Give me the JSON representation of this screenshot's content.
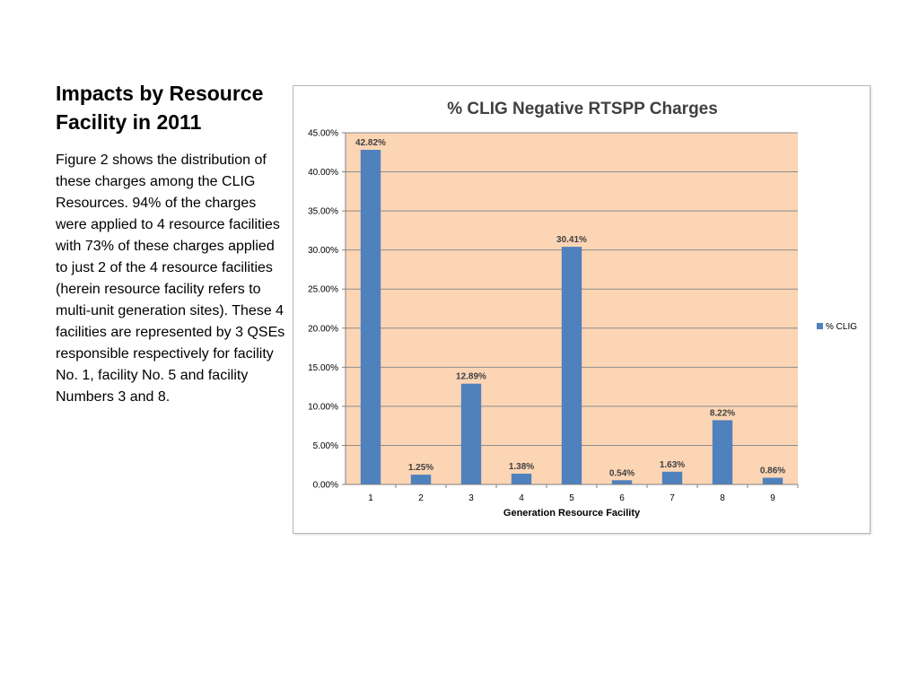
{
  "slide": {
    "title": "Impacts by Resource Facility in 2011",
    "body": "Figure 2 shows the distribution of these charges among the CLIG Resources.  94% of the charges were applied to 4 resource facilities with 73% of these charges applied to just 2 of the 4 resource facilities (herein resource facility refers to multi-unit generation sites). These 4 facilities are represented by 3 QSEs responsible respectively for facility No. 1, facility No. 5 and facility Numbers 3 and 8."
  },
  "chart_data": {
    "type": "bar",
    "title": "% CLIG Negative RTSPP Charges",
    "xlabel": "Generation Resource Facility",
    "ylabel": "",
    "categories": [
      "1",
      "2",
      "3",
      "4",
      "5",
      "6",
      "7",
      "8",
      "9"
    ],
    "series": [
      {
        "name": "% CLIG",
        "values": [
          42.82,
          1.25,
          12.89,
          1.38,
          30.41,
          0.54,
          1.63,
          8.22,
          0.86
        ],
        "labels": [
          "42.82%",
          "1.25%",
          "12.89%",
          "1.38%",
          "30.41%",
          "0.54%",
          "1.63%",
          "8.22%",
          "0.86%"
        ]
      }
    ],
    "ylim": [
      0,
      45
    ],
    "yticks": [
      0,
      5,
      10,
      15,
      20,
      25,
      30,
      35,
      40,
      45
    ],
    "ytick_labels": [
      "0.00%",
      "5.00%",
      "10.00%",
      "15.00%",
      "20.00%",
      "25.00%",
      "30.00%",
      "35.00%",
      "40.00%",
      "45.00%"
    ],
    "grid": true,
    "legend_position": "right",
    "colors": {
      "bar": "#4f81bd",
      "plot_bg": "#fcd5b5",
      "grid": "#8c8c8c"
    }
  }
}
